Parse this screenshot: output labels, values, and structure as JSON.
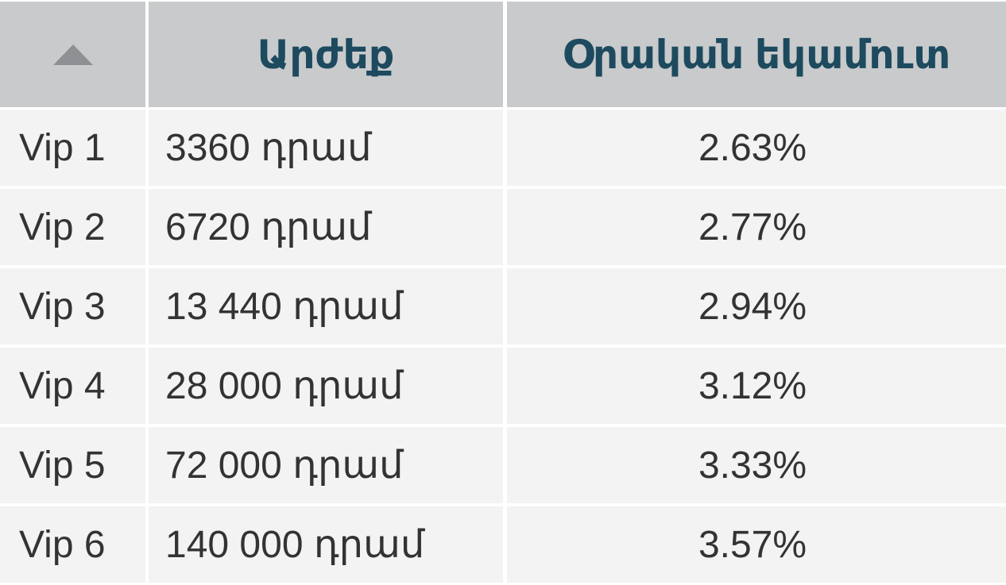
{
  "table": {
    "headers": [
      "Արժեք",
      "Օրական եկամուտ"
    ],
    "rows": [
      [
        "Vip 1",
        "3360 դրամ",
        "2.63%"
      ],
      [
        "Vip 2",
        "6720 դրամ",
        "2.77%"
      ],
      [
        "Vip 3",
        "13 440 դրամ",
        "2.94%"
      ],
      [
        "Vip 4",
        "28 000 դրամ",
        "3.12%"
      ],
      [
        "Vip 5",
        "72 000 դրամ",
        "3.33%"
      ],
      [
        "Vip 6",
        "140 000 դրամ",
        "3.57%"
      ]
    ]
  }
}
